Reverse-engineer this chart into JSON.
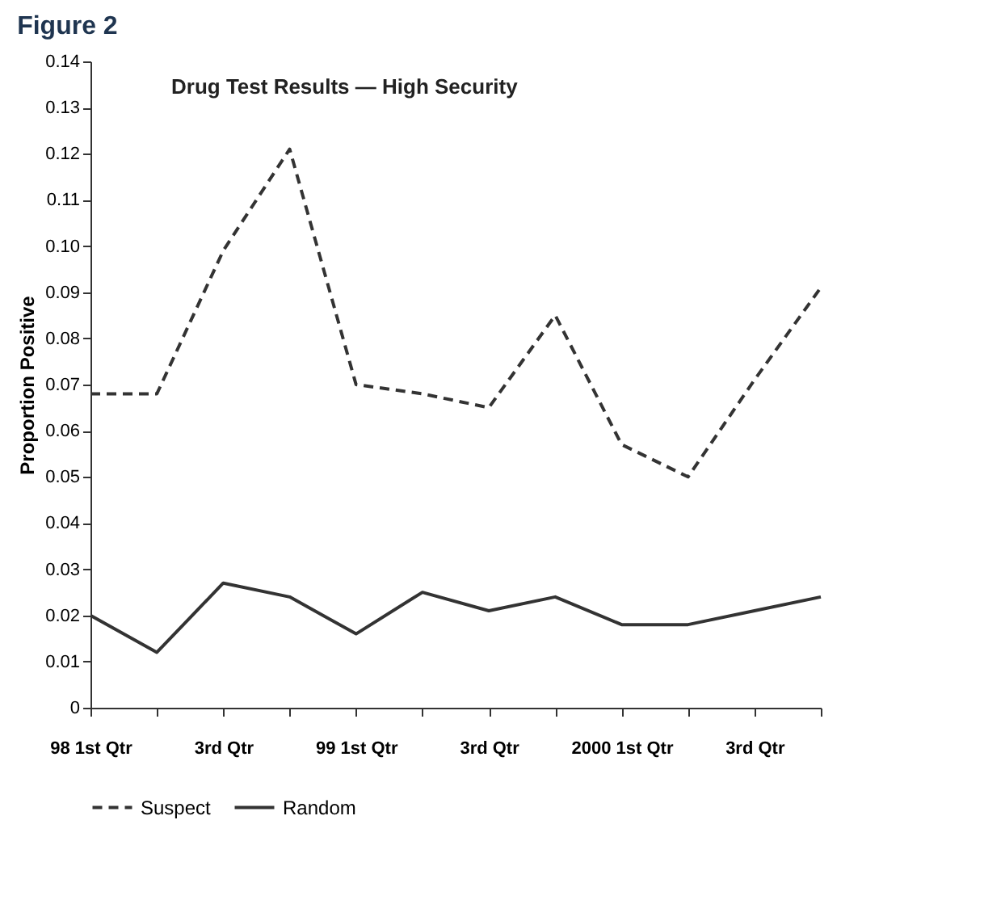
{
  "chart_data": {
    "type": "line",
    "title": "Drug Test Results — High Security",
    "ylabel": "Proportion Positive",
    "annotations": [
      "Figure 2"
    ],
    "categories": [
      "98 1st Qtr",
      null,
      "3rd Qtr",
      null,
      "99 1st Qtr",
      null,
      "3rd Qtr",
      null,
      "2000 1st Qtr",
      null,
      "3rd Qtr",
      null
    ],
    "series": [
      {
        "name": "Suspect",
        "color": "#333333",
        "line_style": "dashed",
        "values": [
          0.068,
          0.068,
          0.099,
          0.121,
          0.07,
          0.068,
          0.065,
          0.085,
          0.057,
          0.05,
          0.071,
          0.091
        ]
      },
      {
        "name": "Random",
        "color": "#333333",
        "line_style": "solid",
        "values": [
          0.02,
          0.012,
          0.027,
          0.024,
          0.016,
          0.025,
          0.021,
          0.024,
          0.018,
          0.018,
          0.021,
          0.024
        ]
      }
    ],
    "ylim": [
      0,
      0.14
    ],
    "yticks": [
      0,
      0.01,
      0.02,
      0.03,
      0.04,
      0.05,
      0.06,
      0.07,
      0.08,
      0.09,
      {
        "value": 0.1,
        "label": "0.10"
      },
      0.11,
      0.12,
      0.13,
      0.14
    ],
    "grid": false,
    "legend": "bottom",
    "marker": "none"
  }
}
